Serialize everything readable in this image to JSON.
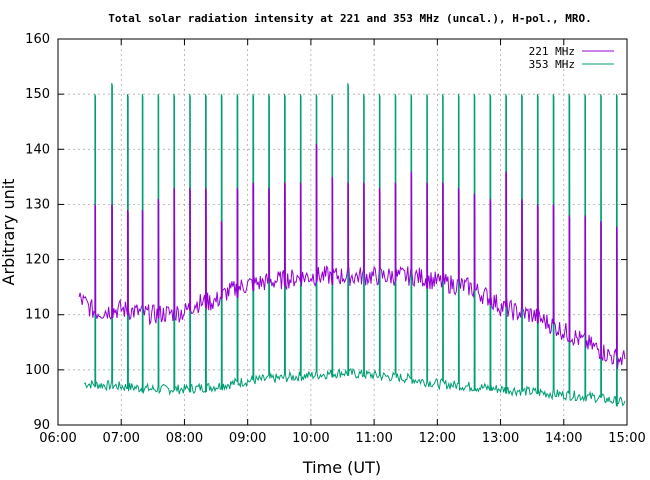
{
  "chart_data": {
    "type": "line",
    "title": "Total solar radiation intensity at 221 and 353 MHz (uncal.), H-pol., MRO.",
    "xlabel": "Time (UT)",
    "ylabel": "Arbitrary unit",
    "xlim": [
      "06:00",
      "15:00"
    ],
    "ylim": [
      90,
      160
    ],
    "x_ticks": [
      "06:00",
      "07:00",
      "08:00",
      "09:00",
      "10:00",
      "11:00",
      "12:00",
      "13:00",
      "14:00",
      "15:00"
    ],
    "y_ticks": [
      "90",
      "100",
      "110",
      "120",
      "130",
      "140",
      "150",
      "160"
    ],
    "grid": true,
    "legend_position": "top-right",
    "colors": {
      "s221": "#9400d3",
      "s353": "#009e73",
      "axis": "#000000",
      "grid": "#a0a0a0"
    },
    "series": [
      {
        "name": "221 MHz",
        "baseline": [
          [
            "06:20",
            113
          ],
          [
            "06:35",
            110.5
          ],
          [
            "07:00",
            111
          ],
          [
            "07:30",
            110
          ],
          [
            "08:00",
            110.5
          ],
          [
            "08:10",
            112
          ],
          [
            "08:30",
            112.5
          ],
          [
            "08:40",
            114
          ],
          [
            "09:00",
            115.5
          ],
          [
            "09:20",
            116
          ],
          [
            "09:40",
            116.5
          ],
          [
            "10:00",
            117
          ],
          [
            "10:20",
            117
          ],
          [
            "10:40",
            117
          ],
          [
            "11:00",
            117
          ],
          [
            "11:20",
            117
          ],
          [
            "11:40",
            117
          ],
          [
            "12:00",
            116
          ],
          [
            "12:30",
            115
          ],
          [
            "12:50",
            113
          ],
          [
            "13:00",
            111.5
          ],
          [
            "13:15",
            110.5
          ],
          [
            "13:30",
            110
          ],
          [
            "13:50",
            108
          ],
          [
            "14:10",
            106
          ],
          [
            "14:30",
            104
          ],
          [
            "14:50",
            102
          ],
          [
            "14:58",
            102
          ]
        ],
        "bursts": [
          [
            "06:35",
            130
          ],
          [
            "06:51",
            130
          ],
          [
            "07:06",
            129
          ],
          [
            "07:20",
            129
          ],
          [
            "07:35",
            131
          ],
          [
            "07:50",
            133
          ],
          [
            "08:05",
            133
          ],
          [
            "08:20",
            133
          ],
          [
            "08:35",
            127
          ],
          [
            "08:50",
            133
          ],
          [
            "09:05",
            134
          ],
          [
            "09:20",
            133
          ],
          [
            "09:35",
            134
          ],
          [
            "09:50",
            134
          ],
          [
            "10:05",
            141
          ],
          [
            "10:20",
            135
          ],
          [
            "10:35",
            134
          ],
          [
            "10:50",
            134
          ],
          [
            "11:05",
            133
          ],
          [
            "11:20",
            134
          ],
          [
            "11:35",
            136
          ],
          [
            "11:50",
            134
          ],
          [
            "12:05",
            134
          ],
          [
            "12:20",
            133
          ],
          [
            "12:35",
            132
          ],
          [
            "12:50",
            131
          ],
          [
            "13:05",
            136
          ],
          [
            "13:20",
            131
          ],
          [
            "13:35",
            130
          ],
          [
            "13:50",
            130
          ],
          [
            "14:05",
            128
          ],
          [
            "14:20",
            128
          ],
          [
            "14:35",
            127
          ],
          [
            "14:50",
            126
          ]
        ]
      },
      {
        "name": "353 MHz",
        "baseline": [
          [
            "06:25",
            97.5
          ],
          [
            "07:00",
            97
          ],
          [
            "07:30",
            96.5
          ],
          [
            "08:00",
            96.5
          ],
          [
            "08:30",
            97
          ],
          [
            "09:00",
            98
          ],
          [
            "09:30",
            98.5
          ],
          [
            "10:00",
            99
          ],
          [
            "10:30",
            99.5
          ],
          [
            "11:00",
            99
          ],
          [
            "11:30",
            98.5
          ],
          [
            "12:00",
            97.5
          ],
          [
            "12:30",
            97
          ],
          [
            "13:00",
            96.5
          ],
          [
            "13:30",
            96
          ],
          [
            "14:00",
            95.5
          ],
          [
            "14:30",
            95
          ],
          [
            "14:58",
            94
          ]
        ],
        "bursts": [
          [
            "06:35",
            150
          ],
          [
            "06:51",
            152
          ],
          [
            "07:06",
            150
          ],
          [
            "07:20",
            150
          ],
          [
            "07:35",
            150
          ],
          [
            "07:50",
            150
          ],
          [
            "08:05",
            150
          ],
          [
            "08:20",
            150
          ],
          [
            "08:35",
            150
          ],
          [
            "08:50",
            150
          ],
          [
            "09:05",
            150
          ],
          [
            "09:20",
            150
          ],
          [
            "09:35",
            150
          ],
          [
            "09:50",
            150
          ],
          [
            "10:05",
            150
          ],
          [
            "10:20",
            150
          ],
          [
            "10:35",
            152
          ],
          [
            "10:50",
            150
          ],
          [
            "11:05",
            150
          ],
          [
            "11:20",
            150
          ],
          [
            "11:35",
            150
          ],
          [
            "11:50",
            150
          ],
          [
            "12:05",
            150
          ],
          [
            "12:20",
            150
          ],
          [
            "12:35",
            150
          ],
          [
            "12:50",
            150
          ],
          [
            "13:05",
            150
          ],
          [
            "13:20",
            150
          ],
          [
            "13:35",
            150
          ],
          [
            "13:50",
            150
          ],
          [
            "14:05",
            150
          ],
          [
            "14:20",
            150
          ],
          [
            "14:35",
            150
          ],
          [
            "14:50",
            150
          ]
        ]
      }
    ]
  }
}
